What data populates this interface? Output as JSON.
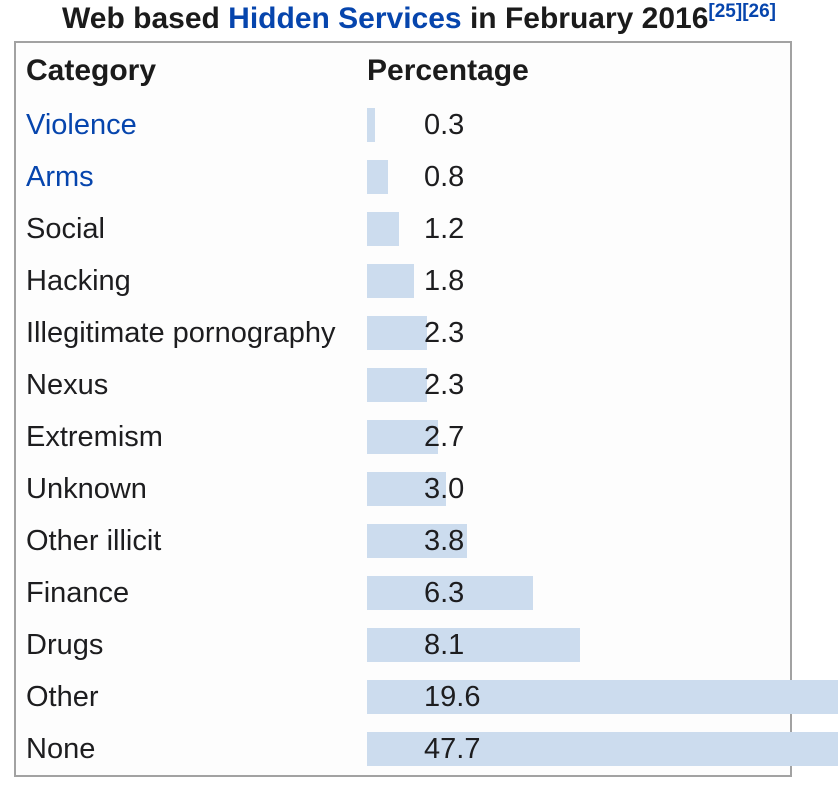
{
  "caption": {
    "text_before_link": "Web based ",
    "link_text": "Hidden Services",
    "text_after_link": " in February 2016",
    "ref_1": "[25]",
    "ref_2": "[26]"
  },
  "table_headers": {
    "category": "Category",
    "percentage": "Percentage"
  },
  "chart_data": {
    "type": "bar",
    "orientation": "horizontal",
    "title": "Web based Hidden Services in February 2016",
    "xlabel": "Percentage",
    "ylabel": "Category",
    "value_unit": "percent",
    "xlim": [
      0,
      100
    ],
    "grid": false,
    "legend": false,
    "categories": [
      "Violence",
      "Arms",
      "Social",
      "Hacking",
      "Illegitimate pornography",
      "Nexus",
      "Extremism",
      "Unknown",
      "Other illicit",
      "Finance",
      "Drugs",
      "Other",
      "None"
    ],
    "values": [
      0.3,
      0.8,
      1.2,
      1.8,
      2.3,
      2.3,
      2.7,
      3.0,
      3.8,
      6.3,
      8.1,
      19.6,
      47.7
    ],
    "rows": [
      {
        "label": "Violence",
        "value": "0.3",
        "link": true
      },
      {
        "label": "Arms",
        "value": "0.8",
        "link": true
      },
      {
        "label": "Social",
        "value": "1.2",
        "link": false
      },
      {
        "label": "Hacking",
        "value": "1.8",
        "link": false
      },
      {
        "label": "Illegitimate pornography",
        "value": "2.3",
        "link": false
      },
      {
        "label": "Nexus",
        "value": "2.3",
        "link": false
      },
      {
        "label": "Extremism",
        "value": "2.7",
        "link": false
      },
      {
        "label": "Unknown",
        "value": "3.0",
        "link": false
      },
      {
        "label": "Other illicit",
        "value": "3.8",
        "link": false
      },
      {
        "label": "Finance",
        "value": "6.3",
        "link": false
      },
      {
        "label": "Drugs",
        "value": "8.1",
        "link": false
      },
      {
        "label": "Other",
        "value": "19.6",
        "link": false
      },
      {
        "label": "None",
        "value": "47.7",
        "link": false
      }
    ]
  },
  "colors": {
    "bar": "#ccdcee",
    "link": "#0645ad",
    "text": "#1d1d1f",
    "table_border": "#a2a2a2"
  }
}
